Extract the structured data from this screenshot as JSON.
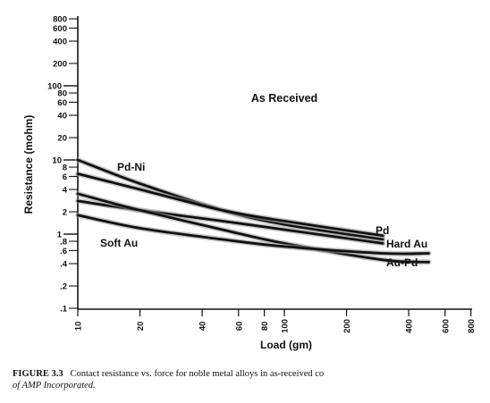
{
  "chart_data": {
    "type": "line",
    "xlabel": "Load (gm)",
    "ylabel": "Resistance (mohm)",
    "x_scale": "log",
    "y_scale": "log",
    "xlim": [
      10,
      800
    ],
    "ylim": [
      0.1,
      900
    ],
    "x_ticks": [
      10,
      20,
      40,
      60,
      80,
      100,
      200,
      400,
      600,
      800
    ],
    "x_tick_labels": [
      "10",
      "20",
      "40",
      "60",
      "80",
      "100",
      "200",
      "400",
      "600",
      "800"
    ],
    "y_ticks": [
      800,
      600,
      400,
      200,
      100,
      80,
      60,
      40,
      20,
      10,
      8,
      6,
      4,
      2,
      1,
      0.8,
      0.6,
      0.4,
      0.2,
      0.1
    ],
    "y_tick_labels": [
      "800",
      "600",
      "400",
      "200",
      "100",
      "80",
      "60",
      "40",
      "20",
      "10",
      "8",
      "6",
      "4",
      "2",
      "1",
      ".8",
      ".6",
      ".4",
      ".2",
      ".1"
    ],
    "annotation": "As Received",
    "series": [
      {
        "name": "Pd-Ni",
        "x": [
          10,
          20,
          50,
          100,
          300
        ],
        "y": [
          10,
          4.8,
          2.1,
          1.35,
          0.85
        ]
      },
      {
        "name": "Pd",
        "x": [
          10,
          20,
          50,
          100,
          300
        ],
        "y": [
          6.5,
          4,
          2.1,
          1.5,
          0.95
        ]
      },
      {
        "name": "Hard Au",
        "x": [
          10,
          20,
          50,
          100,
          300
        ],
        "y": [
          2.8,
          2.1,
          1.5,
          1.15,
          0.75
        ]
      },
      {
        "name": "Au-Pd",
        "x": [
          10,
          20,
          50,
          100,
          300,
          500
        ],
        "y": [
          3.5,
          2.1,
          1.15,
          0.75,
          0.45,
          0.42
        ]
      },
      {
        "name": "Soft Au",
        "x": [
          10,
          20,
          50,
          100,
          300,
          500
        ],
        "y": [
          1.8,
          1.2,
          0.85,
          0.68,
          0.55,
          0.55
        ]
      }
    ]
  },
  "caption": {
    "figure_number": "FIGURE 3.3",
    "text": "Contact resistance vs. force for noble metal alloys in as-received co",
    "continuation": "of AMP Incorporated."
  }
}
